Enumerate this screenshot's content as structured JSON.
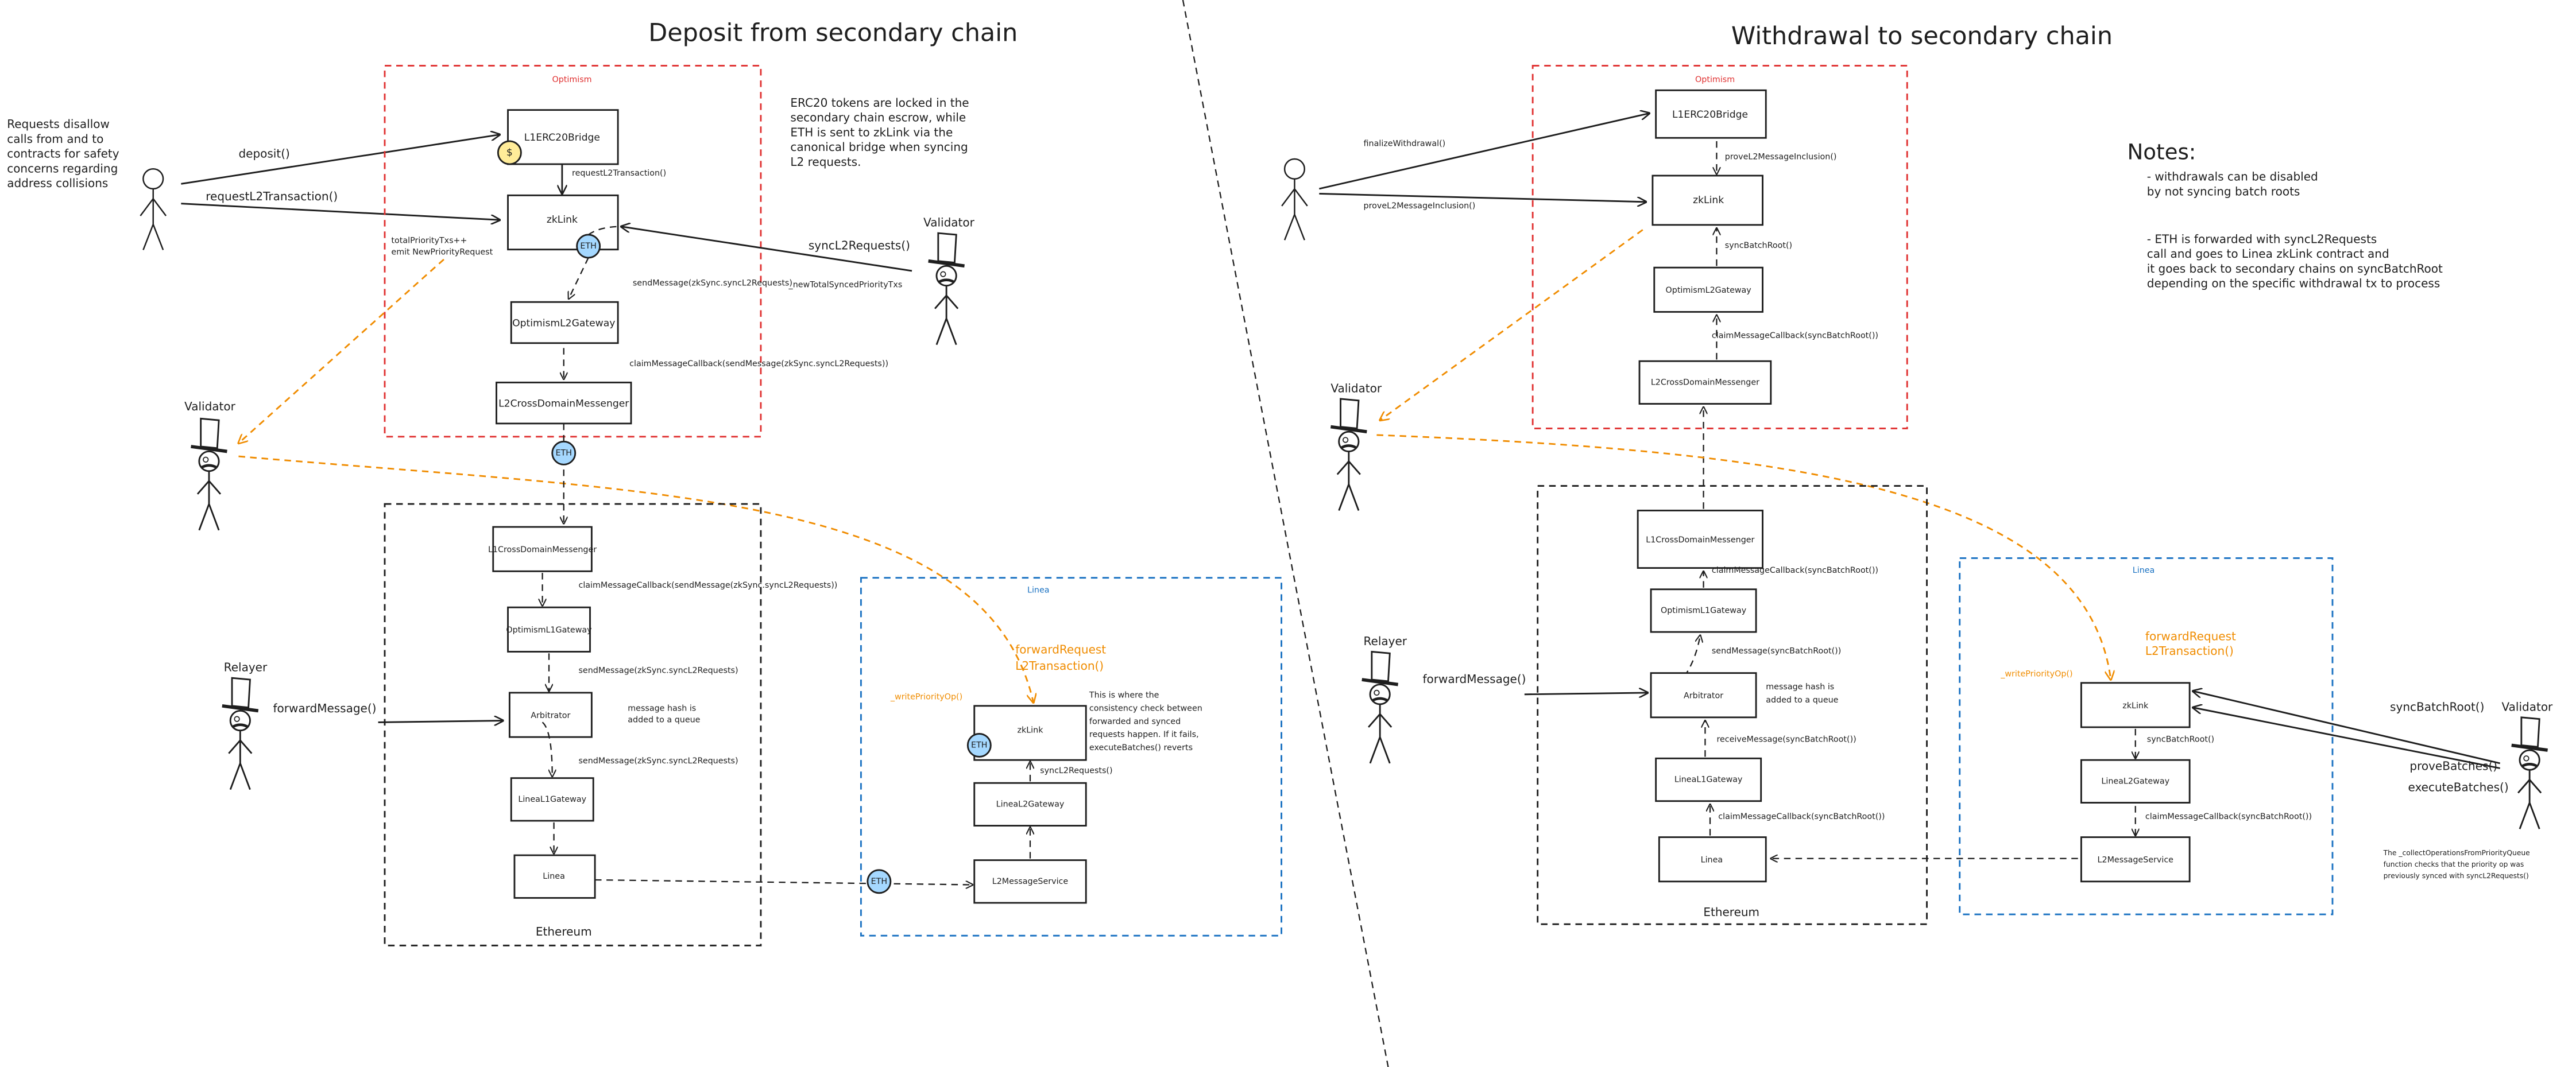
{
  "colors": {
    "optimism": "#e03131",
    "linea": "#1971c2",
    "ethereum": "#1e1e1e",
    "orange_flow": "#f08c00",
    "eth_token": "#a5d8ff",
    "erc20_token": "#ffec99"
  },
  "deposit": {
    "title": "Deposit from secondary chain",
    "user_note": [
      "Requests disallow",
      "calls from and to",
      "contracts for safety",
      "concerns regarding",
      "address collisions"
    ],
    "deposit_call": "deposit()",
    "request_call": "requestL2Transaction()",
    "erc20_note": [
      "ERC20 tokens are locked in the",
      "secondary chain escrow, while",
      "ETH is sent to zkLink via the",
      "canonical bridge when syncing",
      "L2 requests."
    ],
    "optimism": {
      "label": "Optimism",
      "l1erc20bridge": "L1ERC20Bridge",
      "dollar": "$",
      "bridge_to_zklink": "requestL2Transaction()",
      "zklink": "zkLink",
      "eth": "ETH",
      "priority_note": [
        "totalPriorityTxs++",
        "emit NewPriorityRequest"
      ],
      "send_message": "sendMessage(zkSync.syncL2Requests)",
      "gateway": "OptimismL2Gateway",
      "claim": "claimMessageCallback(sendMessage(zkSync.syncL2Requests))",
      "messenger": "L2CrossDomainMessenger"
    },
    "validator_right": {
      "label": "Validator",
      "call": "syncL2Requests()",
      "param": "_newTotalSyncedPriorityTxs"
    },
    "validator_left": {
      "label": "Validator"
    },
    "bridge_eth": "ETH",
    "ethereum": {
      "label": "Ethereum",
      "messenger": "L1CrossDomainMessenger",
      "claim": "claimMessageCallback(sendMessage(zkSync.syncL2Requests))",
      "gateway": "OptimismL1Gateway",
      "send1": "sendMessage(zkSync.syncL2Requests)",
      "arbitrator": "Arbitrator",
      "queue_note": [
        "message hash is",
        "added to a queue"
      ],
      "send2": "sendMessage(zkSync.syncL2Requests)",
      "linea_gateway": "LineaL1Gateway",
      "linea": "Linea"
    },
    "relayer": {
      "label": "Relayer",
      "call": "forwardMessage()"
    },
    "linea_eth": "ETH",
    "linea": {
      "label": "Linea",
      "forward": [
        "forwardRequest",
        "L2Transaction()"
      ],
      "write_op": "_writePriorityOp()",
      "zklink": "zkLink",
      "eth": "ETH",
      "check_note": [
        "This is where the",
        "consistency check between",
        "forwarded and synced",
        "requests happen. If it fails,",
        "executeBatches() reverts"
      ],
      "sync": "syncL2Requests()",
      "gateway": "LineaL2Gateway",
      "service": "L2MessageService"
    }
  },
  "withdrawal": {
    "title": "Withdrawal to secondary chain",
    "finalize_call": "finalizeWithdrawal()",
    "prove_call": "proveL2MessageInclusion()",
    "optimism": {
      "label": "Optimism",
      "l1erc20bridge": "L1ERC20Bridge",
      "prove": "proveL2MessageInclusion()",
      "zklink": "zkLink",
      "sync": "syncBatchRoot()",
      "gateway": "OptimismL2Gateway",
      "claim": "claimMessageCallback(syncBatchRoot())",
      "messenger": "L2CrossDomainMessenger"
    },
    "notes": {
      "title": "Notes:",
      "lines1": [
        "- withdrawals can be disabled",
        "by not syncing batch roots"
      ],
      "lines2": [
        "- ETH is forwarded with syncL2Requests",
        "call and goes to Linea zkLink contract and",
        "it goes back to secondary chains on syncBatchRoot",
        "depending on the specific withdrawal tx to process"
      ]
    },
    "validator_left": {
      "label": "Validator"
    },
    "ethereum": {
      "label": "Ethereum",
      "messenger": "L1CrossDomainMessenger",
      "claim1": "claimMessageCallback(syncBatchRoot())",
      "gateway": "OptimismL1Gateway",
      "send": "sendMessage(syncBatchRoot())",
      "arbitrator": "Arbitrator",
      "queue_note": [
        "message hash is",
        "added to a queue"
      ],
      "receive": "receiveMessage(syncBatchRoot())",
      "linea_gateway": "LineaL1Gateway",
      "claim2": "claimMessageCallback(syncBatchRoot())",
      "linea": "Linea"
    },
    "relayer": {
      "label": "Relayer",
      "call": "forwardMessage()"
    },
    "linea": {
      "label": "Linea",
      "forward": [
        "forwardRequest",
        "L2Transaction()"
      ],
      "write_op": "_writePriorityOp()",
      "zklink": "zkLink",
      "sync": "syncBatchRoot()",
      "gateway": "LineaL2Gateway",
      "claim": "claimMessageCallback(syncBatchRoot())",
      "service": "L2MessageService"
    },
    "validator_right": {
      "label": "Validator",
      "call": "syncBatchRoot()",
      "prove": "proveBatches()",
      "execute": "executeBatches()",
      "note": [
        "The _collectOperationsFromPriorityQueue",
        "function checks that the priority op was",
        "previously synced with syncL2Requests()"
      ]
    }
  }
}
